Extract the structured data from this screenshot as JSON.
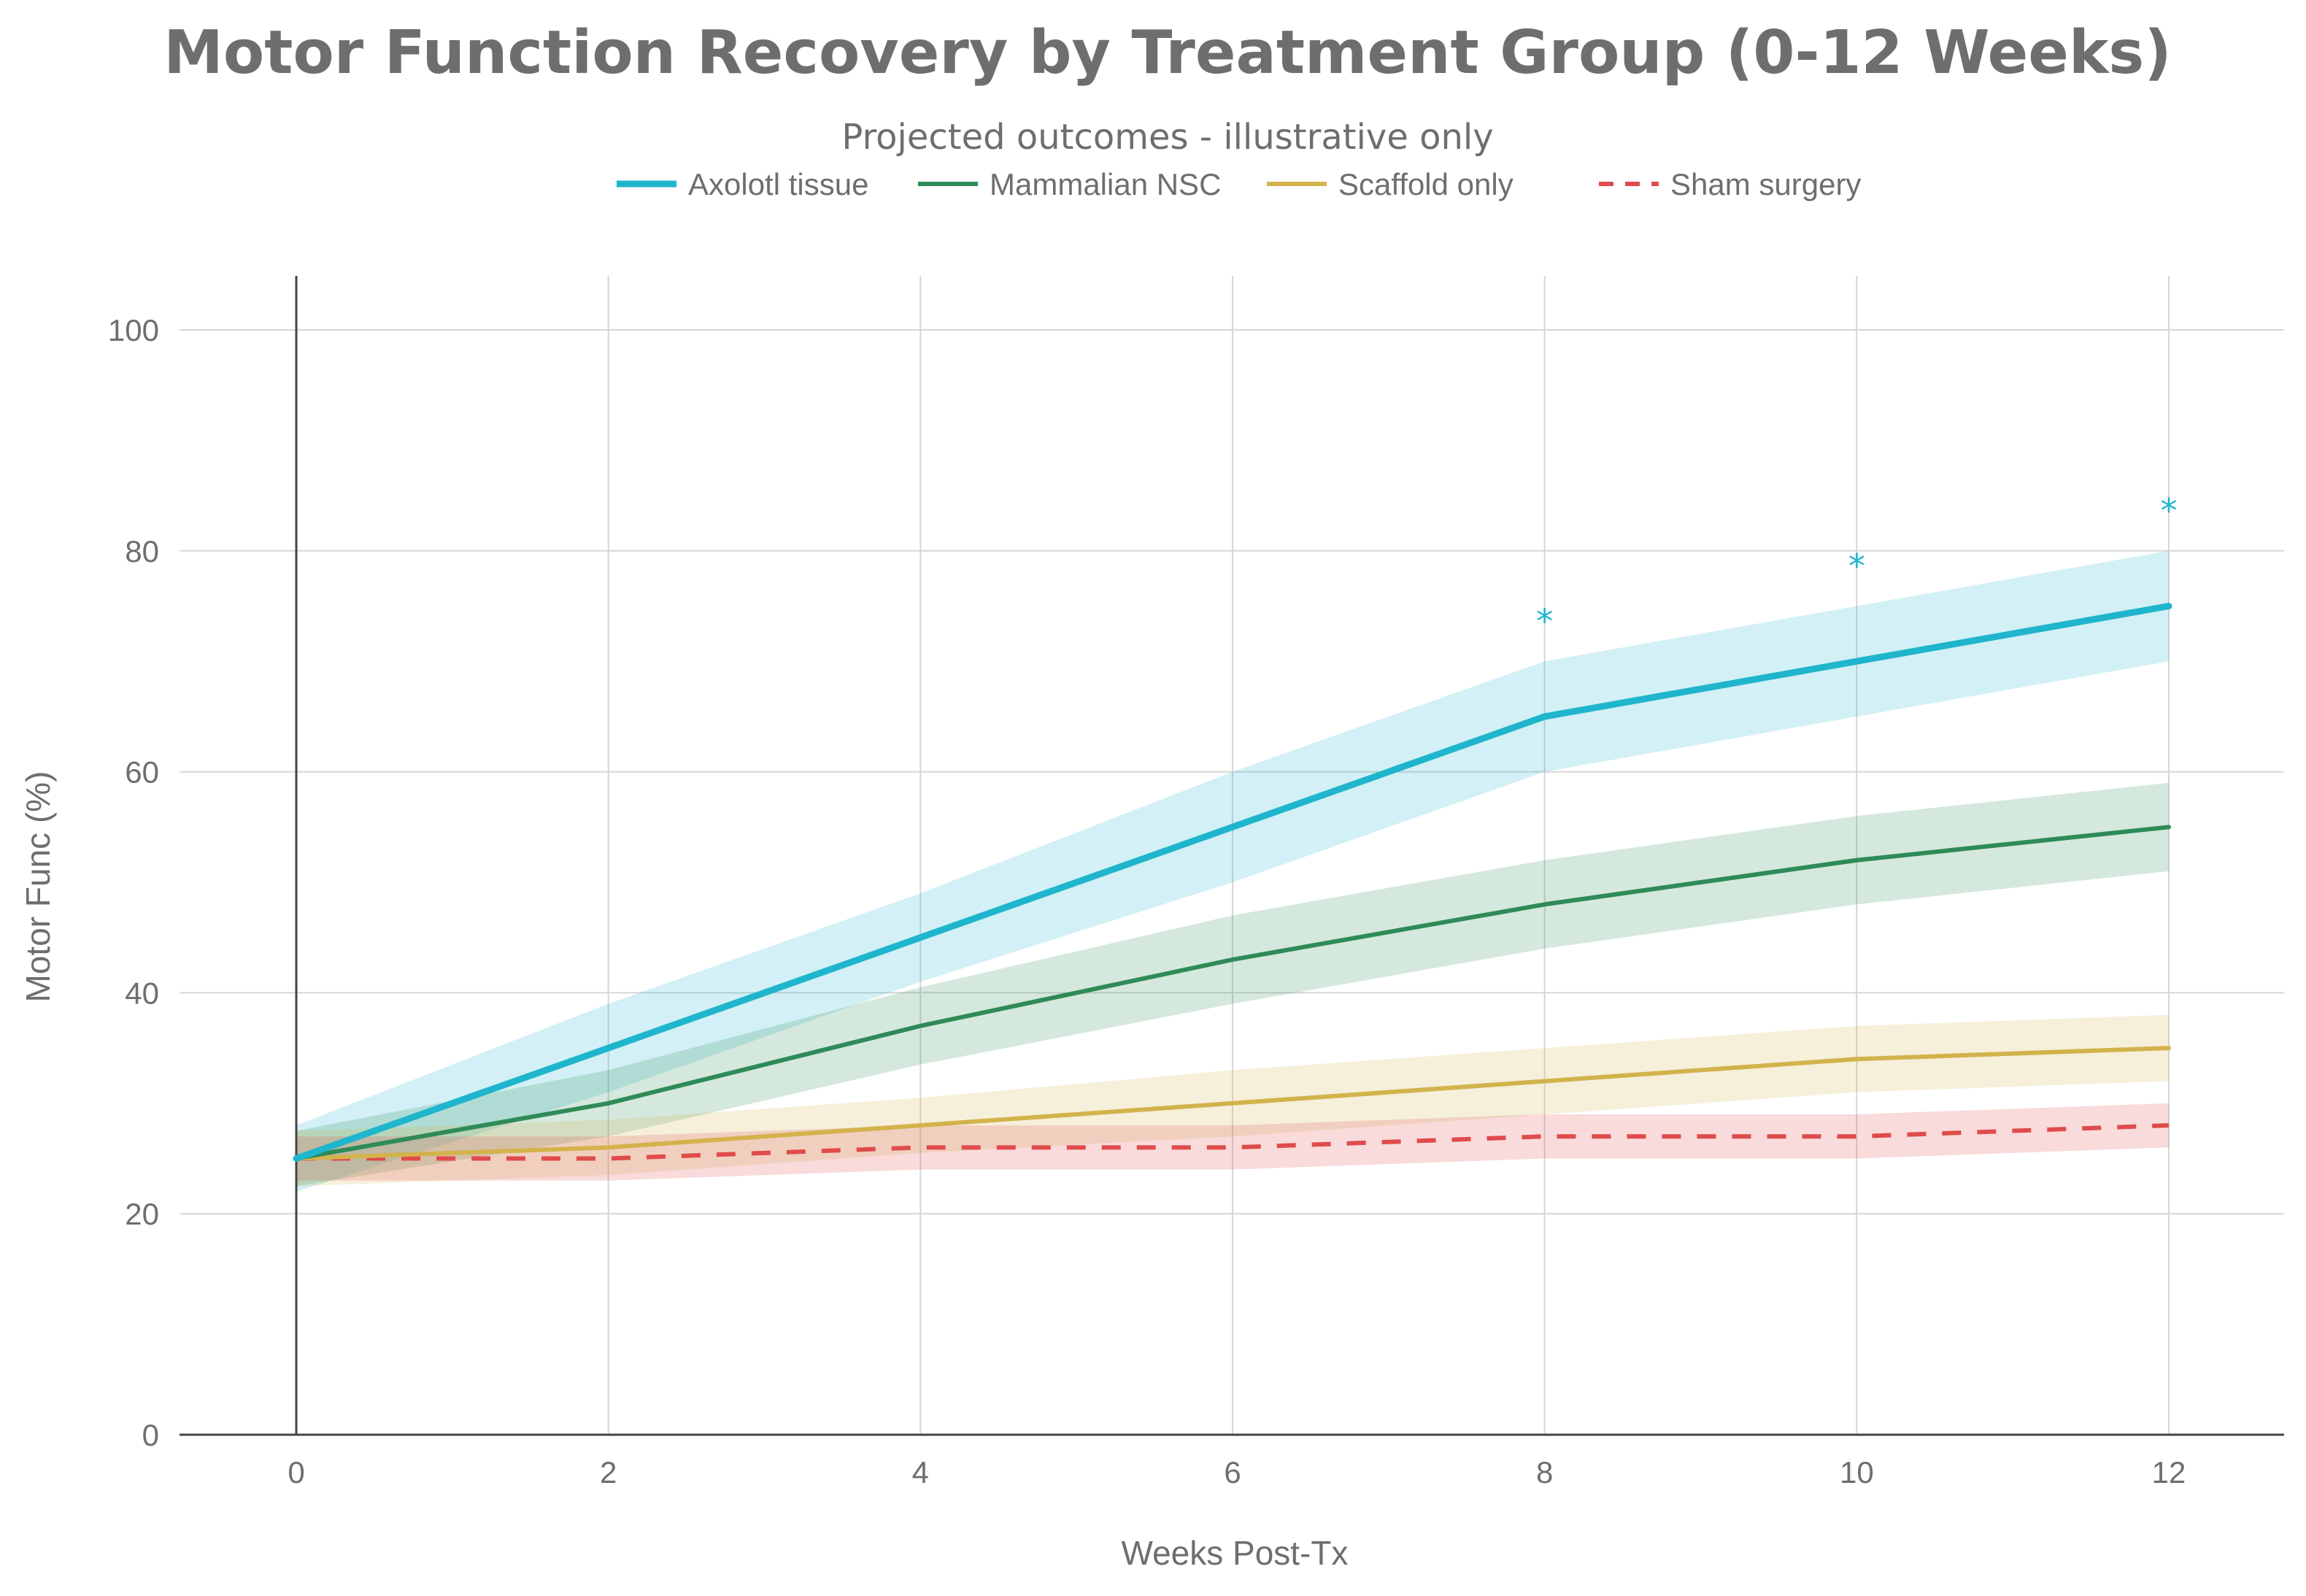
{
  "chart_data": {
    "type": "line",
    "title": "Motor Function Recovery by Treatment Group (0-12 Weeks)",
    "subtitle": "Projected outcomes - illustrative only",
    "xlabel": "Weeks Post-Tx",
    "ylabel": "Motor Func (%)",
    "x": [
      0,
      2,
      4,
      6,
      8,
      10,
      12
    ],
    "xlim": [
      -0.75,
      12.75
    ],
    "ylim": [
      0,
      105
    ],
    "xticks": [
      0,
      2,
      4,
      6,
      8,
      10,
      12
    ],
    "yticks": [
      0,
      20,
      40,
      60,
      80,
      100
    ],
    "grid": true,
    "legend_position": "top-center",
    "series": [
      {
        "name": "Axolotl tissue",
        "color": "#1fb5cc",
        "dash": "solid",
        "values": [
          25,
          35,
          45,
          55,
          65,
          70,
          75
        ],
        "lower": [
          22,
          31,
          41,
          50,
          60,
          65,
          70
        ],
        "upper": [
          28,
          39,
          49,
          60,
          70,
          75,
          80
        ]
      },
      {
        "name": "Mammalian NSC",
        "color": "#2e8b57",
        "dash": "solid",
        "values": [
          25,
          30,
          37,
          43,
          48,
          52,
          55
        ],
        "lower": [
          22.5,
          27,
          33.5,
          39,
          44,
          48,
          51
        ],
        "upper": [
          27.5,
          33,
          40.5,
          47,
          52,
          56,
          59
        ]
      },
      {
        "name": "Scaffold only",
        "color": "#d4b24c",
        "dash": "solid",
        "values": [
          25,
          26,
          28,
          30,
          32,
          34,
          35
        ],
        "lower": [
          22.5,
          23.5,
          25.5,
          27,
          29,
          31,
          32
        ],
        "upper": [
          27.5,
          28.5,
          30.5,
          33,
          35,
          37,
          38
        ]
      },
      {
        "name": "Sham surgery",
        "color": "#e04b4b",
        "dash": "dashed",
        "values": [
          25,
          25,
          26,
          26,
          27,
          27,
          28
        ],
        "lower": [
          23,
          23,
          24,
          24,
          25,
          25,
          26
        ],
        "upper": [
          27,
          27,
          28,
          28,
          29,
          29,
          30
        ]
      }
    ],
    "annotations": [
      {
        "text": "*",
        "x": 8,
        "y": 74,
        "color": "#1fb5cc"
      },
      {
        "text": "*",
        "x": 10,
        "y": 79,
        "color": "#1fb5cc"
      },
      {
        "text": "*",
        "x": 12,
        "y": 84,
        "color": "#1fb5cc"
      }
    ]
  }
}
